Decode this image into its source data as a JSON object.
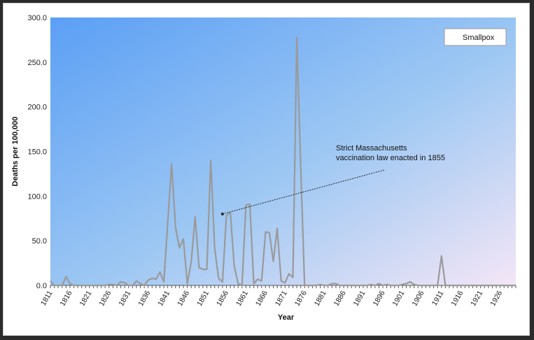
{
  "chart_data": {
    "type": "line",
    "title": "",
    "xlabel": "Year",
    "ylabel": "Deaths per 100,000",
    "xlim": [
      1811,
      1930
    ],
    "ylim": [
      0,
      300
    ],
    "y_ticks": [
      "0.0",
      "50.0",
      "100.0",
      "150.0",
      "200.0",
      "250.0",
      "300.0"
    ],
    "x_ticks": [
      "1811",
      "1816",
      "1821",
      "1826",
      "1831",
      "1836",
      "1841",
      "1846",
      "1851",
      "1856",
      "1861",
      "1866",
      "1871",
      "1876",
      "1881",
      "1886",
      "1891",
      "1896",
      "1901",
      "1906",
      "1911",
      "1916",
      "1921",
      "1926"
    ],
    "legend_position": "top-right",
    "grid": false,
    "series": [
      {
        "name": "Smallpox",
        "color": "#9a9a9a",
        "x": [
          1811,
          1812,
          1813,
          1814,
          1815,
          1816,
          1817,
          1818,
          1819,
          1820,
          1821,
          1822,
          1823,
          1824,
          1825,
          1826,
          1827,
          1828,
          1829,
          1830,
          1831,
          1832,
          1833,
          1834,
          1835,
          1836,
          1837,
          1838,
          1839,
          1840,
          1841,
          1842,
          1843,
          1844,
          1845,
          1846,
          1847,
          1848,
          1849,
          1850,
          1851,
          1852,
          1853,
          1854,
          1855,
          1856,
          1857,
          1858,
          1859,
          1860,
          1861,
          1862,
          1863,
          1864,
          1865,
          1866,
          1867,
          1868,
          1869,
          1870,
          1871,
          1872,
          1873,
          1874,
          1875,
          1876,
          1877,
          1878,
          1879,
          1880,
          1881,
          1882,
          1883,
          1884,
          1885,
          1886,
          1887,
          1888,
          1889,
          1890,
          1891,
          1892,
          1893,
          1894,
          1895,
          1896,
          1897,
          1898,
          1899,
          1900,
          1901,
          1902,
          1903,
          1904,
          1905,
          1906,
          1907,
          1908,
          1909,
          1910,
          1911,
          1912,
          1913,
          1914,
          1915,
          1916,
          1917,
          1918,
          1919,
          1920,
          1921,
          1922,
          1923,
          1924,
          1925,
          1926,
          1927,
          1928,
          1929,
          1930
        ],
        "values": [
          5,
          0,
          0,
          0,
          10,
          2,
          0,
          0,
          0,
          0,
          0,
          0,
          0,
          0,
          0,
          1,
          1,
          0,
          4,
          3,
          0,
          0,
          5,
          2,
          0,
          6,
          8,
          7,
          15,
          4,
          70,
          136,
          65,
          42,
          52,
          2,
          26,
          77,
          20,
          18,
          18,
          140,
          42,
          8,
          4,
          78,
          82,
          22,
          2,
          0,
          90,
          91,
          2,
          7,
          5,
          60,
          59,
          27,
          64,
          5,
          3,
          13,
          9,
          278,
          135,
          0,
          0,
          0,
          0,
          1,
          0,
          0,
          2,
          2,
          0,
          0,
          0,
          0,
          0,
          0,
          0,
          0,
          1,
          0,
          2,
          0,
          1,
          0,
          0,
          0,
          1,
          2,
          4,
          1,
          0,
          0,
          0,
          0,
          0,
          0,
          33,
          0,
          0,
          0,
          0,
          0,
          0,
          0,
          0,
          0,
          0,
          0,
          0,
          0,
          0,
          0,
          0,
          0,
          0,
          0
        ]
      }
    ],
    "annotation": {
      "lines": [
        "Strict Massachusetts",
        "vaccination law enacted in 1855"
      ],
      "points_to_year": 1855,
      "points_to_value": 80
    }
  }
}
